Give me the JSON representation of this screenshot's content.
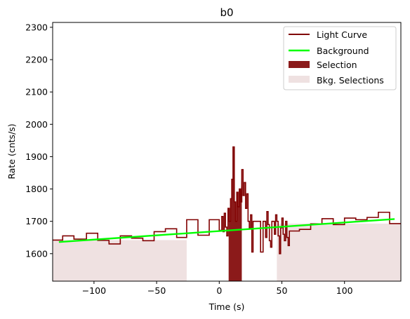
{
  "chart_data": {
    "type": "line",
    "title": "b0",
    "xlabel": "Time (s)",
    "ylabel": "Rate (cnts/s)",
    "xlim": [
      -133,
      145
    ],
    "ylim": [
      1515,
      2315
    ],
    "xticks": [
      -100,
      -50,
      0,
      50,
      100
    ],
    "xtick_labels": [
      "−100",
      "−50",
      "0",
      "50",
      "100"
    ],
    "yticks": [
      1600,
      1700,
      1800,
      1900,
      2000,
      2100,
      2200,
      2300
    ],
    "ytick_labels": [
      "1600",
      "1700",
      "1800",
      "1900",
      "2000",
      "2100",
      "2200",
      "2300"
    ],
    "legend_position": "top-right",
    "colors": {
      "light_curve": "#800000",
      "background": "#00ff00",
      "selection": "#8b1a1a",
      "bkg_selection": "#efe1e1"
    },
    "series": [
      {
        "name": "Light Curve",
        "style": "step",
        "points": [
          [
            -133,
            1642
          ],
          [
            -125,
            1642
          ],
          [
            -125,
            1655
          ],
          [
            -116,
            1655
          ],
          [
            -116,
            1645
          ],
          [
            -106,
            1645
          ],
          [
            -106,
            1663
          ],
          [
            -97,
            1663
          ],
          [
            -97,
            1641
          ],
          [
            -88,
            1641
          ],
          [
            -88,
            1630
          ],
          [
            -79,
            1630
          ],
          [
            -79,
            1655
          ],
          [
            -70,
            1655
          ],
          [
            -70,
            1648
          ],
          [
            -61,
            1648
          ],
          [
            -61,
            1640
          ],
          [
            -52,
            1640
          ],
          [
            -52,
            1668
          ],
          [
            -43,
            1668
          ],
          [
            -43,
            1677
          ],
          [
            -34,
            1677
          ],
          [
            -34,
            1650
          ],
          [
            -26,
            1650
          ],
          [
            -26,
            1705
          ],
          [
            -17,
            1705
          ],
          [
            -17,
            1657
          ],
          [
            -8,
            1657
          ],
          [
            -8,
            1705
          ],
          [
            0,
            1705
          ],
          [
            0,
            1672
          ],
          [
            2,
            1672
          ],
          [
            2,
            1715
          ],
          [
            3,
            1715
          ],
          [
            3,
            1668
          ],
          [
            4,
            1668
          ],
          [
            4,
            1725
          ],
          [
            5,
            1725
          ],
          [
            5,
            1682
          ],
          [
            6,
            1682
          ],
          [
            6,
            1655
          ],
          [
            7,
            1655
          ],
          [
            7,
            1740
          ],
          [
            8,
            1740
          ],
          [
            8,
            1700
          ],
          [
            9,
            1700
          ],
          [
            9,
            1770
          ],
          [
            10,
            1770
          ],
          [
            10,
            1830
          ],
          [
            11,
            1830
          ],
          [
            11,
            1930
          ],
          [
            12,
            1930
          ],
          [
            12,
            1760
          ],
          [
            13,
            1760
          ],
          [
            13,
            1700
          ],
          [
            14,
            1700
          ],
          [
            14,
            1790
          ],
          [
            15,
            1790
          ],
          [
            15,
            1745
          ],
          [
            16,
            1745
          ],
          [
            16,
            1800
          ],
          [
            17,
            1800
          ],
          [
            17,
            1760
          ],
          [
            18,
            1760
          ],
          [
            18,
            1860
          ],
          [
            19,
            1860
          ],
          [
            19,
            1780
          ],
          [
            20,
            1780
          ],
          [
            20,
            1820
          ],
          [
            21,
            1820
          ],
          [
            21,
            1740
          ],
          [
            22,
            1740
          ],
          [
            22,
            1785
          ],
          [
            23,
            1785
          ],
          [
            23,
            1700
          ],
          [
            24,
            1700
          ],
          [
            24,
            1680
          ],
          [
            25,
            1680
          ],
          [
            25,
            1720
          ],
          [
            26,
            1720
          ],
          [
            26,
            1605
          ],
          [
            27,
            1605
          ],
          [
            27,
            1700
          ],
          [
            33,
            1700
          ],
          [
            33,
            1605
          ],
          [
            35,
            1605
          ],
          [
            35,
            1700
          ],
          [
            37,
            1700
          ],
          [
            37,
            1650
          ],
          [
            38,
            1650
          ],
          [
            38,
            1730
          ],
          [
            39,
            1730
          ],
          [
            39,
            1690
          ],
          [
            40,
            1690
          ],
          [
            40,
            1640
          ],
          [
            41,
            1640
          ],
          [
            41,
            1620
          ],
          [
            42,
            1620
          ],
          [
            42,
            1700
          ],
          [
            44,
            1700
          ],
          [
            44,
            1660
          ],
          [
            45,
            1660
          ],
          [
            45,
            1720
          ],
          [
            46,
            1720
          ],
          [
            46,
            1700
          ],
          [
            47,
            1700
          ],
          [
            47,
            1655
          ],
          [
            48,
            1655
          ],
          [
            48,
            1600
          ],
          [
            49,
            1600
          ],
          [
            49,
            1680
          ],
          [
            50,
            1680
          ],
          [
            50,
            1710
          ],
          [
            51,
            1710
          ],
          [
            51,
            1660
          ],
          [
            52,
            1660
          ],
          [
            52,
            1640
          ],
          [
            53,
            1640
          ],
          [
            53,
            1700
          ],
          [
            54,
            1700
          ],
          [
            54,
            1650
          ],
          [
            55,
            1650
          ],
          [
            55,
            1625
          ],
          [
            56,
            1625
          ],
          [
            56,
            1670
          ],
          [
            64,
            1670
          ],
          [
            64,
            1675
          ],
          [
            73,
            1675
          ],
          [
            73,
            1692
          ],
          [
            82,
            1692
          ],
          [
            82,
            1708
          ],
          [
            91,
            1708
          ],
          [
            91,
            1690
          ],
          [
            100,
            1690
          ],
          [
            100,
            1710
          ],
          [
            109,
            1710
          ],
          [
            109,
            1705
          ],
          [
            118,
            1705
          ],
          [
            118,
            1712
          ],
          [
            127,
            1712
          ],
          [
            127,
            1728
          ],
          [
            136,
            1728
          ],
          [
            136,
            1693
          ],
          [
            145,
            1693
          ]
        ]
      },
      {
        "name": "Background",
        "style": "line",
        "points": [
          [
            -128,
            1636
          ],
          [
            140,
            1707
          ]
        ]
      }
    ],
    "selection": {
      "name": "Selection",
      "x_range": [
        7.5,
        18
      ]
    },
    "bkg_selections": {
      "name": "Bkg. Selections",
      "intervals": [
        {
          "x_range": [
            -133,
            -26
          ],
          "top": 1642
        },
        {
          "x_range": [
            46,
            145
          ],
          "top": 1693
        }
      ]
    },
    "legend": [
      {
        "label": "Light Curve",
        "kind": "line"
      },
      {
        "label": "Background",
        "kind": "line-bright"
      },
      {
        "label": "Selection",
        "kind": "patch"
      },
      {
        "label": "Bkg. Selections",
        "kind": "patch-light"
      }
    ]
  }
}
